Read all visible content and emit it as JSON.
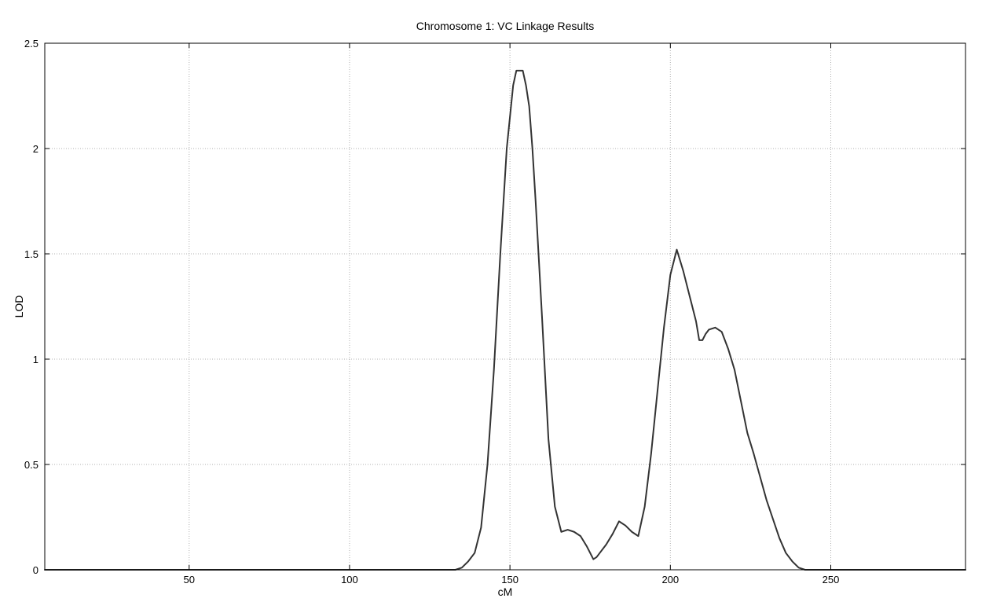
{
  "chart_data": {
    "type": "line",
    "title": "Chromosome 1: VC Linkage Results",
    "xlabel": "cM",
    "ylabel": "LOD",
    "xlim": [
      5,
      292
    ],
    "ylim": [
      0,
      2.5
    ],
    "xticks": [
      50,
      100,
      150,
      200,
      250
    ],
    "xtick_labels": [
      "50",
      "100",
      "150",
      "200",
      "250"
    ],
    "yticks": [
      0,
      0.5,
      1,
      1.5,
      2,
      2.5
    ],
    "ytick_labels": [
      "0",
      "0.5",
      "1",
      "1.5",
      "2",
      "2.5"
    ],
    "grid": true,
    "line_color": "#333333",
    "grid_color": "#b0b0b0",
    "series": [
      {
        "x": [
          5,
          133,
          135,
          137,
          139,
          141,
          143,
          145,
          147,
          149,
          151,
          152,
          153,
          154,
          155,
          156,
          157,
          158,
          160,
          162,
          164,
          166,
          168,
          170,
          172,
          174,
          176,
          177,
          178,
          180,
          182,
          184,
          186,
          188,
          190,
          192,
          194,
          196,
          198,
          200,
          202,
          204,
          206,
          208,
          209,
          210,
          211,
          212,
          214,
          216,
          218,
          220,
          222,
          224,
          226,
          228,
          230,
          232,
          234,
          236,
          238,
          240,
          242,
          292
        ],
        "y": [
          0,
          0,
          0.01,
          0.04,
          0.08,
          0.2,
          0.5,
          0.95,
          1.5,
          2.0,
          2.3,
          2.37,
          2.37,
          2.37,
          2.3,
          2.2,
          2.0,
          1.75,
          1.2,
          0.62,
          0.3,
          0.18,
          0.19,
          0.18,
          0.16,
          0.11,
          0.05,
          0.06,
          0.08,
          0.12,
          0.17,
          0.23,
          0.21,
          0.18,
          0.16,
          0.3,
          0.55,
          0.85,
          1.15,
          1.4,
          1.52,
          1.42,
          1.3,
          1.18,
          1.09,
          1.09,
          1.12,
          1.14,
          1.15,
          1.13,
          1.05,
          0.95,
          0.8,
          0.65,
          0.55,
          0.44,
          0.33,
          0.24,
          0.15,
          0.08,
          0.04,
          0.01,
          0,
          0
        ]
      }
    ]
  }
}
